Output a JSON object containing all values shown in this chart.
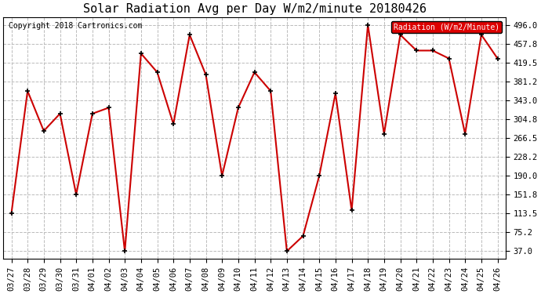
{
  "title": "Solar Radiation Avg per Day W/m2/minute 20180426",
  "copyright": "Copyright 2018 Cartronics.com",
  "legend_label": "Radiation (W/m2/Minute)",
  "dates": [
    "03/27",
    "03/28",
    "03/29",
    "03/30",
    "03/31",
    "04/01",
    "04/02",
    "04/03",
    "04/04",
    "04/05",
    "04/06",
    "04/07",
    "04/08",
    "04/09",
    "04/10",
    "04/11",
    "04/12",
    "04/13",
    "04/14",
    "04/15",
    "04/16",
    "04/17",
    "04/18",
    "04/19",
    "04/20",
    "04/21",
    "04/22",
    "04/23",
    "04/24",
    "04/25",
    "04/26"
  ],
  "values": [
    113.5,
    362.0,
    281.0,
    316.0,
    152.0,
    316.0,
    328.0,
    37.0,
    438.0,
    400.0,
    295.0,
    476.0,
    395.0,
    190.0,
    328.0,
    400.0,
    362.0,
    37.0,
    68.0,
    190.0,
    357.0,
    120.0,
    496.0,
    275.0,
    476.0,
    444.0,
    444.0,
    428.0,
    275.0,
    476.0,
    428.0
  ],
  "line_color": "#cc0000",
  "marker_color": "black",
  "background_color": "#ffffff",
  "grid_color": "#bbbbbb",
  "yticks": [
    37.0,
    75.2,
    113.5,
    151.8,
    190.0,
    228.2,
    266.5,
    304.8,
    343.0,
    381.2,
    419.5,
    457.8,
    496.0
  ],
  "ylim": [
    22,
    512
  ],
  "title_fontsize": 11,
  "legend_bg": "#dd0000",
  "legend_text_color": "#ffffff",
  "copyright_fontsize": 7,
  "tick_fontsize": 7.5,
  "ytick_fontsize": 7.5
}
